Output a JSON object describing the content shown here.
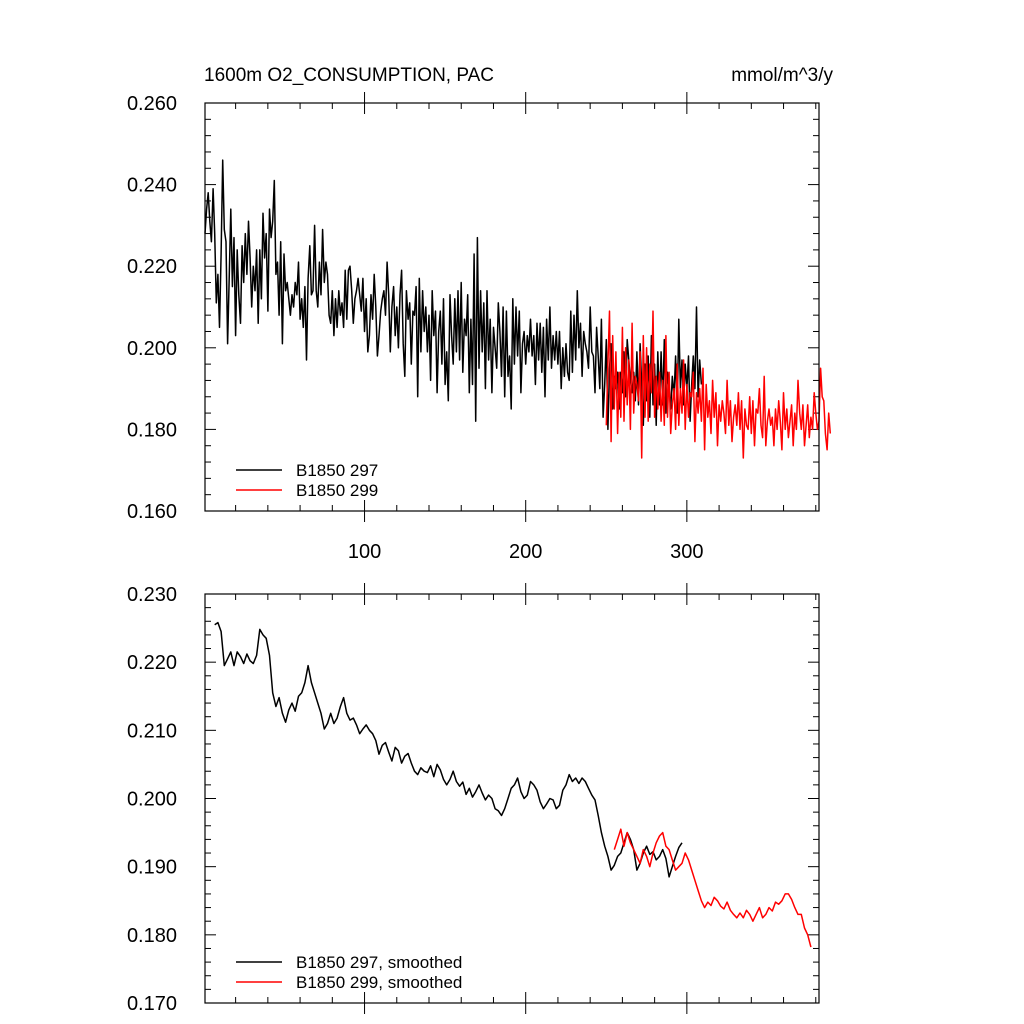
{
  "chart_data": [
    {
      "type": "line",
      "title": "1600m O2_CONSUMPTION, PAC",
      "units": "mmol/m^3/y",
      "xlim": [
        1,
        382
      ],
      "ylim": [
        0.16,
        0.26
      ],
      "x_tick_labels": [
        "100",
        "200",
        "300"
      ],
      "x_ticks": [
        100,
        200,
        300
      ],
      "y_ticks": [
        0.16,
        0.18,
        0.2,
        0.22,
        0.24,
        0.26
      ],
      "y_tick_labels": [
        "0.160",
        "0.180",
        "0.200",
        "0.220",
        "0.240",
        "0.260"
      ],
      "legend_position": "bottom-left",
      "series": [
        {
          "name": "B1850 297",
          "color": "#000000",
          "x_start": 1,
          "x_step": 1,
          "values": [
            0.228,
            0.234,
            0.238,
            0.231,
            0.226,
            0.239,
            0.228,
            0.211,
            0.218,
            0.205,
            0.223,
            0.246,
            0.229,
            0.226,
            0.201,
            0.217,
            0.234,
            0.215,
            0.227,
            0.203,
            0.224,
            0.213,
            0.206,
            0.225,
            0.216,
            0.228,
            0.218,
            0.231,
            0.222,
            0.21,
            0.22,
            0.214,
            0.224,
            0.206,
            0.224,
            0.212,
            0.233,
            0.222,
            0.228,
            0.209,
            0.234,
            0.227,
            0.231,
            0.241,
            0.218,
            0.221,
            0.208,
            0.226,
            0.201,
            0.223,
            0.214,
            0.216,
            0.212,
            0.208,
            0.213,
            0.21,
            0.216,
            0.213,
            0.221,
            0.207,
            0.212,
            0.205,
            0.215,
            0.197,
            0.217,
            0.225,
            0.213,
            0.214,
            0.23,
            0.214,
            0.21,
            0.221,
            0.213,
            0.229,
            0.216,
            0.221,
            0.218,
            0.208,
            0.206,
            0.214,
            0.203,
            0.212,
            0.205,
            0.214,
            0.208,
            0.211,
            0.205,
            0.219,
            0.207,
            0.219,
            0.22,
            0.214,
            0.206,
            0.212,
            0.214,
            0.217,
            0.213,
            0.209,
            0.217,
            0.204,
            0.212,
            0.199,
            0.203,
            0.213,
            0.207,
            0.218,
            0.21,
            0.198,
            0.203,
            0.209,
            0.212,
            0.214,
            0.208,
            0.221,
            0.213,
            0.199,
            0.21,
            0.215,
            0.203,
            0.21,
            0.2,
            0.213,
            0.219,
            0.201,
            0.193,
            0.214,
            0.207,
            0.211,
            0.196,
            0.209,
            0.208,
            0.215,
            0.188,
            0.217,
            0.199,
            0.214,
            0.204,
            0.21,
            0.199,
            0.208,
            0.192,
            0.214,
            0.203,
            0.209,
            0.189,
            0.204,
            0.209,
            0.196,
            0.212,
            0.191,
            0.199,
            0.187,
            0.213,
            0.203,
            0.196,
            0.212,
            0.199,
            0.214,
            0.197,
            0.216,
            0.194,
            0.207,
            0.203,
            0.213,
            0.189,
            0.207,
            0.191,
            0.223,
            0.182,
            0.227,
            0.195,
            0.214,
            0.199,
            0.211,
            0.19,
            0.214,
            0.197,
            0.207,
            0.189,
            0.205,
            0.2,
            0.195,
            0.211,
            0.204,
            0.193,
            0.21,
            0.188,
            0.209,
            0.193,
            0.198,
            0.185,
            0.212,
            0.196,
            0.21,
            0.198,
            0.209,
            0.189,
            0.201,
            0.204,
            0.196,
            0.203,
            0.199,
            0.207,
            0.198,
            0.203,
            0.191,
            0.206,
            0.197,
            0.206,
            0.194,
            0.205,
            0.188,
            0.207,
            0.197,
            0.21,
            0.195,
            0.203,
            0.197,
            0.204,
            0.196,
            0.204,
            0.19,
            0.2,
            0.193,
            0.201,
            0.194,
            0.192,
            0.209,
            0.194,
            0.208,
            0.197,
            0.214,
            0.2,
            0.206,
            0.193,
            0.204,
            0.201,
            0.199,
            0.195,
            0.21,
            0.199,
            0.198,
            0.189,
            0.205,
            0.198,
            0.19,
            0.207,
            0.183,
            0.191,
            0.202,
            0.18,
            0.195,
            0.201,
            0.185,
            0.193,
            0.19,
            0.194,
            0.185,
            0.194,
            0.189,
            0.199,
            0.188,
            0.202,
            0.197,
            0.192,
            0.189,
            0.194,
            0.187,
            0.199,
            0.186,
            0.201,
            0.191,
            0.181,
            0.196,
            0.187,
            0.198,
            0.183,
            0.203,
            0.186,
            0.196,
            0.181,
            0.199,
            0.186,
            0.199,
            0.186,
            0.202,
            0.184,
            0.194,
            0.19,
            0.185,
            0.193,
            0.188,
            0.198,
            0.184,
            0.207,
            0.19,
            0.197,
            0.186,
            0.196,
            0.19,
            0.198,
            0.182,
            0.191,
            0.198,
            0.19,
            0.21,
            0.188,
            0.197,
            0.191
          ]
        },
        {
          "name": "B1850 299",
          "color": "#ff0000",
          "x_start": 250,
          "x_step": 1,
          "values": [
            0.181,
            0.196,
            0.209,
            0.177,
            0.203,
            0.185,
            0.199,
            0.179,
            0.194,
            0.183,
            0.205,
            0.182,
            0.2,
            0.186,
            0.197,
            0.18,
            0.206,
            0.184,
            0.193,
            0.191,
            0.187,
            0.199,
            0.173,
            0.203,
            0.183,
            0.2,
            0.182,
            0.196,
            0.189,
            0.209,
            0.183,
            0.193,
            0.185,
            0.194,
            0.182,
            0.192,
            0.181,
            0.203,
            0.183,
            0.194,
            0.179,
            0.186,
            0.19,
            0.18,
            0.196,
            0.181,
            0.19,
            0.184,
            0.197,
            0.18,
            0.191,
            0.183,
            0.189,
            0.188,
            0.194,
            0.177,
            0.189,
            0.184,
            0.19,
            0.182,
            0.195,
            0.175,
            0.191,
            0.183,
            0.187,
            0.179,
            0.192,
            0.183,
            0.189,
            0.176,
            0.186,
            0.182,
            0.187,
            0.184,
            0.179,
            0.192,
            0.181,
            0.187,
            0.177,
            0.183,
            0.186,
            0.181,
            0.189,
            0.18,
            0.187,
            0.173,
            0.185,
            0.181,
            0.18,
            0.188,
            0.179,
            0.187,
            0.176,
            0.185,
            0.184,
            0.19,
            0.181,
            0.178,
            0.193,
            0.176,
            0.182,
            0.185,
            0.181,
            0.183,
            0.176,
            0.185,
            0.18,
            0.187,
            0.182,
            0.175,
            0.189,
            0.18,
            0.185,
            0.178,
            0.182,
            0.186,
            0.176,
            0.184,
            0.18,
            0.192,
            0.184,
            0.18,
            0.186,
            0.176,
            0.181,
            0.186,
            0.178,
            0.183,
            0.18,
            0.189,
            0.184,
            0.18,
            0.182,
            0.195,
            0.188,
            0.187,
            0.179,
            0.175,
            0.184,
            0.179
          ]
        }
      ]
    },
    {
      "type": "line",
      "xlim": [
        1,
        382
      ],
      "ylim": [
        0.17,
        0.23
      ],
      "x_ticks": [
        100,
        200,
        300
      ],
      "y_ticks": [
        0.17,
        0.18,
        0.19,
        0.2,
        0.21,
        0.22,
        0.23
      ],
      "y_tick_labels": [
        "0.170",
        "0.180",
        "0.190",
        "0.200",
        "0.210",
        "0.220",
        "0.230"
      ],
      "legend_position": "bottom-left",
      "series": [
        {
          "name": "B1850 297, smoothed",
          "color": "#000000",
          "x_start": 7,
          "x_step": 2,
          "values": [
            0.2255,
            0.2258,
            0.2245,
            0.2195,
            0.2205,
            0.2215,
            0.2195,
            0.2215,
            0.2208,
            0.2198,
            0.2212,
            0.2202,
            0.2198,
            0.221,
            0.2248,
            0.224,
            0.2235,
            0.221,
            0.2155,
            0.2135,
            0.2148,
            0.2125,
            0.2112,
            0.213,
            0.214,
            0.2128,
            0.215,
            0.2155,
            0.217,
            0.2195,
            0.217,
            0.2155,
            0.214,
            0.2125,
            0.2102,
            0.211,
            0.2125,
            0.211,
            0.2118,
            0.2135,
            0.2148,
            0.2125,
            0.2115,
            0.2118,
            0.2108,
            0.2095,
            0.2102,
            0.2108,
            0.21,
            0.2095,
            0.2085,
            0.2065,
            0.2078,
            0.2082,
            0.2068,
            0.2055,
            0.2075,
            0.207,
            0.2052,
            0.2062,
            0.2066,
            0.2052,
            0.204,
            0.2035,
            0.2045,
            0.204,
            0.2038,
            0.2048,
            0.2032,
            0.205,
            0.2042,
            0.2028,
            0.202,
            0.2028,
            0.204,
            0.2025,
            0.2018,
            0.2024,
            0.2006,
            0.2015,
            0.2002,
            0.201,
            0.202,
            0.2008,
            0.1998,
            0.2005,
            0.2,
            0.1985,
            0.1982,
            0.1975,
            0.1985,
            0.2,
            0.2015,
            0.202,
            0.203,
            0.201,
            0.2,
            0.2005,
            0.2025,
            0.202,
            0.2012,
            0.1995,
            0.1985,
            0.1992,
            0.2,
            0.1998,
            0.1985,
            0.199,
            0.2012,
            0.202,
            0.2035,
            0.2025,
            0.203,
            0.2022,
            0.203,
            0.2025,
            0.2015,
            0.2005,
            0.1998,
            0.1975,
            0.195,
            0.193,
            0.1915,
            0.1895,
            0.1902,
            0.1915,
            0.192,
            0.1935,
            0.195,
            0.194,
            0.1925,
            0.1895,
            0.1905,
            0.192,
            0.193,
            0.1918,
            0.1922,
            0.191,
            0.1915,
            0.1925,
            0.1912,
            0.1885,
            0.19,
            0.1915,
            0.1928,
            0.1935
          ]
        },
        {
          "name": "B1850 299, smoothed",
          "color": "#ff0000",
          "x_start": 255,
          "x_step": 2,
          "values": [
            0.1925,
            0.194,
            0.1955,
            0.193,
            0.195,
            0.1935,
            0.1925,
            0.1915,
            0.1905,
            0.1925,
            0.1915,
            0.19,
            0.192,
            0.1935,
            0.1945,
            0.195,
            0.193,
            0.1925,
            0.191,
            0.1895,
            0.19,
            0.1905,
            0.192,
            0.191,
            0.1895,
            0.188,
            0.1865,
            0.185,
            0.184,
            0.1848,
            0.1843,
            0.1855,
            0.185,
            0.1842,
            0.1838,
            0.1848,
            0.1836,
            0.183,
            0.1825,
            0.1832,
            0.1825,
            0.1836,
            0.183,
            0.182,
            0.183,
            0.184,
            0.1825,
            0.183,
            0.184,
            0.1835,
            0.1848,
            0.1845,
            0.185,
            0.186,
            0.186,
            0.1852,
            0.184,
            0.183,
            0.183,
            0.181,
            0.18,
            0.1782
          ]
        }
      ]
    }
  ]
}
